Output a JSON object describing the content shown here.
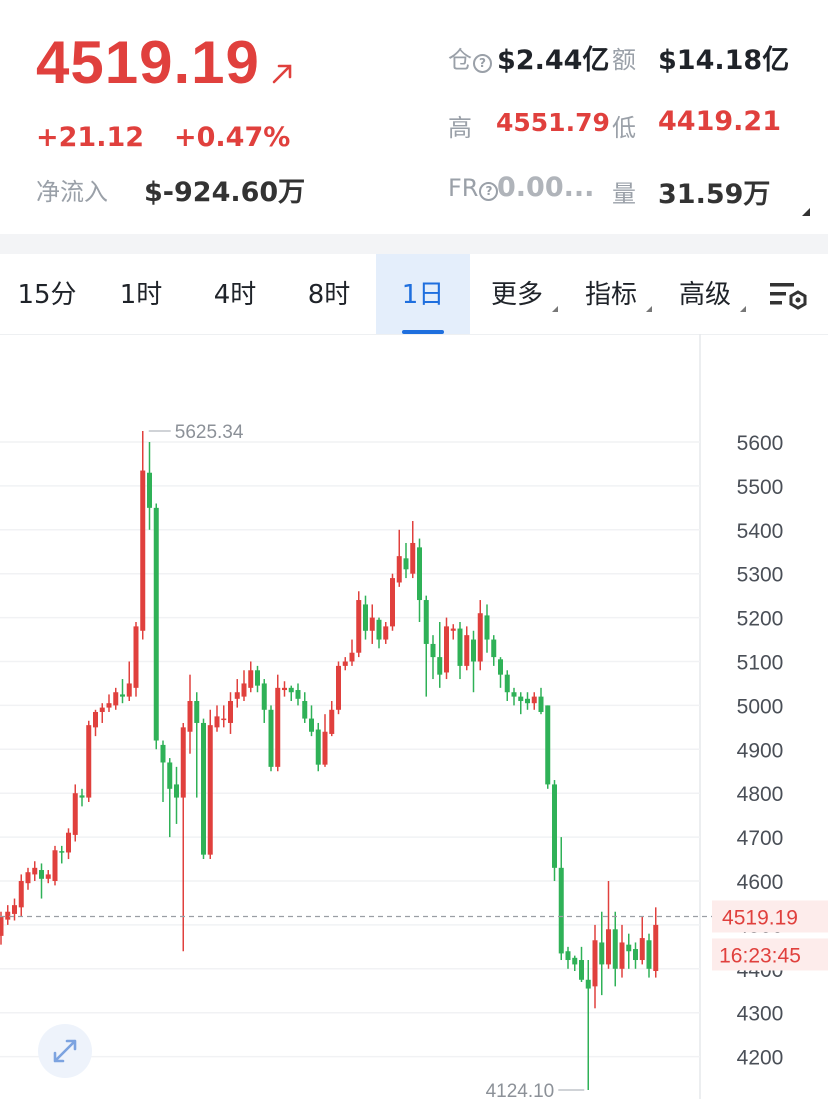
{
  "ticker": {
    "price": "4519.19",
    "change": "+21.12",
    "change_pct": "+0.47%",
    "net_inflow_label": "净流入",
    "net_inflow_value": "$-924.60万"
  },
  "stats": {
    "oi_label": "仓",
    "oi_value": "$2.44亿",
    "amount_label": "额",
    "amount_value": "$14.18亿",
    "high_label": "高",
    "high_value": "4551.79",
    "low_label": "低",
    "low_value": "4419.21",
    "fr_label": "FR",
    "fr_value": "0.00...",
    "volume_label": "量",
    "volume_value": "31.59万"
  },
  "tabs": [
    {
      "label": "15分"
    },
    {
      "label": "1时"
    },
    {
      "label": "4时"
    },
    {
      "label": "8时"
    },
    {
      "label": "1日",
      "active": true
    },
    {
      "label": "更多"
    },
    {
      "label": "指标"
    },
    {
      "label": "高级"
    }
  ],
  "icons": {
    "arrow": "arrow-up-right-icon",
    "settings": "chart-settings-icon",
    "expand": "expand-icon",
    "help": "help-circle-icon"
  },
  "colors": {
    "up": "#e0403d",
    "down": "#2fb157",
    "accent": "#1f6fde"
  },
  "chart_data": {
    "type": "candlestick",
    "y_ticks": [
      5600,
      5500,
      5400,
      5300,
      5200,
      5100,
      5000,
      4900,
      4800,
      4700,
      4600,
      4500,
      4400,
      4300,
      4200
    ],
    "ylim": [
      4100,
      5700
    ],
    "high_annotation": "5625.34",
    "low_annotation": "4124.10",
    "current_price_label": "4519.19",
    "countdown_label": "16:23:45",
    "grid": true,
    "candles": [
      [
        4475,
        4520,
        4455,
        4530
      ],
      [
        4512,
        4530,
        4500,
        4545
      ],
      [
        4525,
        4545,
        4510,
        4560
      ],
      [
        4540,
        4600,
        4520,
        4615
      ],
      [
        4595,
        4620,
        4580,
        4630
      ],
      [
        4615,
        4630,
        4600,
        4645
      ],
      [
        4625,
        4605,
        4560,
        4640
      ],
      [
        4605,
        4615,
        4595,
        4625
      ],
      [
        4600,
        4670,
        4590,
        4680
      ],
      [
        4668,
        4665,
        4640,
        4680
      ],
      [
        4665,
        4710,
        4650,
        4720
      ],
      [
        4705,
        4800,
        4690,
        4820
      ],
      [
        4795,
        4790,
        4770,
        4810
      ],
      [
        4790,
        4955,
        4780,
        4965
      ],
      [
        4950,
        4985,
        4930,
        4990
      ],
      [
        4985,
        4995,
        4960,
        5005
      ],
      [
        4995,
        5005,
        4985,
        5025
      ],
      [
        5000,
        5030,
        4990,
        5040
      ],
      [
        5025,
        5020,
        5005,
        5060
      ],
      [
        5020,
        5050,
        5010,
        5100
      ],
      [
        5040,
        5180,
        5020,
        5190
      ],
      [
        5170,
        5535,
        5150,
        5625
      ],
      [
        5530,
        5450,
        5400,
        5600
      ],
      [
        5450,
        4920,
        4900,
        5460
      ],
      [
        4910,
        4870,
        4780,
        4920
      ],
      [
        4870,
        4810,
        4700,
        4880
      ],
      [
        4820,
        4790,
        4730,
        4860
      ],
      [
        4790,
        4950,
        4440,
        4960
      ],
      [
        4940,
        5010,
        4890,
        5070
      ],
      [
        5010,
        4960,
        4790,
        5030
      ],
      [
        4960,
        4660,
        4650,
        4970
      ],
      [
        4660,
        4955,
        4650,
        4990
      ],
      [
        4950,
        4975,
        4940,
        5000
      ],
      [
        4970,
        4970,
        4950,
        5000
      ],
      [
        4960,
        5010,
        4935,
        5030
      ],
      [
        5015,
        5030,
        4995,
        5060
      ],
      [
        5020,
        5050,
        5010,
        5080
      ],
      [
        5040,
        5080,
        5030,
        5100
      ],
      [
        5080,
        5045,
        5030,
        5090
      ],
      [
        5050,
        4990,
        4960,
        5060
      ],
      [
        4990,
        4860,
        4850,
        5000
      ],
      [
        4860,
        5040,
        4850,
        5070
      ],
      [
        5035,
        5040,
        5020,
        5055
      ],
      [
        5040,
        5030,
        5010,
        5045
      ],
      [
        5035,
        5015,
        5000,
        5050
      ],
      [
        5010,
        4970,
        4960,
        5030
      ],
      [
        4970,
        4940,
        4930,
        5000
      ],
      [
        4945,
        4865,
        4850,
        4960
      ],
      [
        4865,
        4940,
        4860,
        4980
      ],
      [
        4935,
        4990,
        4930,
        5010
      ],
      [
        4990,
        5090,
        4980,
        5100
      ],
      [
        5090,
        5100,
        5080,
        5110
      ],
      [
        5100,
        5120,
        5090,
        5150
      ],
      [
        5120,
        5240,
        5110,
        5260
      ],
      [
        5230,
        5170,
        5150,
        5250
      ],
      [
        5170,
        5200,
        5140,
        5230
      ],
      [
        5195,
        5150,
        5130,
        5200
      ],
      [
        5150,
        5180,
        5140,
        5190
      ],
      [
        5180,
        5290,
        5170,
        5300
      ],
      [
        5280,
        5340,
        5270,
        5400
      ],
      [
        5335,
        5310,
        5290,
        5370
      ],
      [
        5300,
        5370,
        5290,
        5420
      ],
      [
        5360,
        5240,
        5190,
        5380
      ],
      [
        5240,
        5140,
        5020,
        5250
      ],
      [
        5140,
        5110,
        5060,
        5160
      ],
      [
        5110,
        5070,
        5040,
        5190
      ],
      [
        5075,
        5180,
        5060,
        5200
      ],
      [
        5170,
        5175,
        5150,
        5185
      ],
      [
        5175,
        5090,
        5060,
        5190
      ],
      [
        5090,
        5160,
        5080,
        5180
      ],
      [
        5150,
        5100,
        5030,
        5170
      ],
      [
        5100,
        5210,
        5080,
        5240
      ],
      [
        5205,
        5150,
        5120,
        5230
      ],
      [
        5150,
        5110,
        5090,
        5160
      ],
      [
        5105,
        5070,
        5040,
        5110
      ],
      [
        5070,
        5030,
        5010,
        5080
      ],
      [
        5030,
        5020,
        5000,
        5040
      ],
      [
        5020,
        5010,
        4980,
        5030
      ],
      [
        5015,
        5005,
        4990,
        5030
      ],
      [
        5005,
        5020,
        4990,
        5030
      ],
      [
        5020,
        4985,
        4980,
        5040
      ],
      [
        5000,
        4820,
        4810,
        5000
      ],
      [
        4820,
        4630,
        4600,
        4830
      ],
      [
        4630,
        4435,
        4420,
        4700
      ],
      [
        4440,
        4420,
        4400,
        4450
      ],
      [
        4425,
        4410,
        4395,
        4430
      ],
      [
        4420,
        4375,
        4370,
        4450
      ],
      [
        4375,
        4355,
        4124,
        4420
      ],
      [
        4360,
        4465,
        4310,
        4500
      ],
      [
        4460,
        4410,
        4340,
        4530
      ],
      [
        4410,
        4490,
        4400,
        4600
      ],
      [
        4490,
        4400,
        4360,
        4530
      ],
      [
        4400,
        4460,
        4380,
        4500
      ],
      [
        4455,
        4440,
        4400,
        4480
      ],
      [
        4445,
        4420,
        4400,
        4460
      ],
      [
        4420,
        4470,
        4410,
        4520
      ],
      [
        4465,
        4400,
        4380,
        4480
      ],
      [
        4395,
        4500,
        4380,
        4540
      ]
    ]
  }
}
